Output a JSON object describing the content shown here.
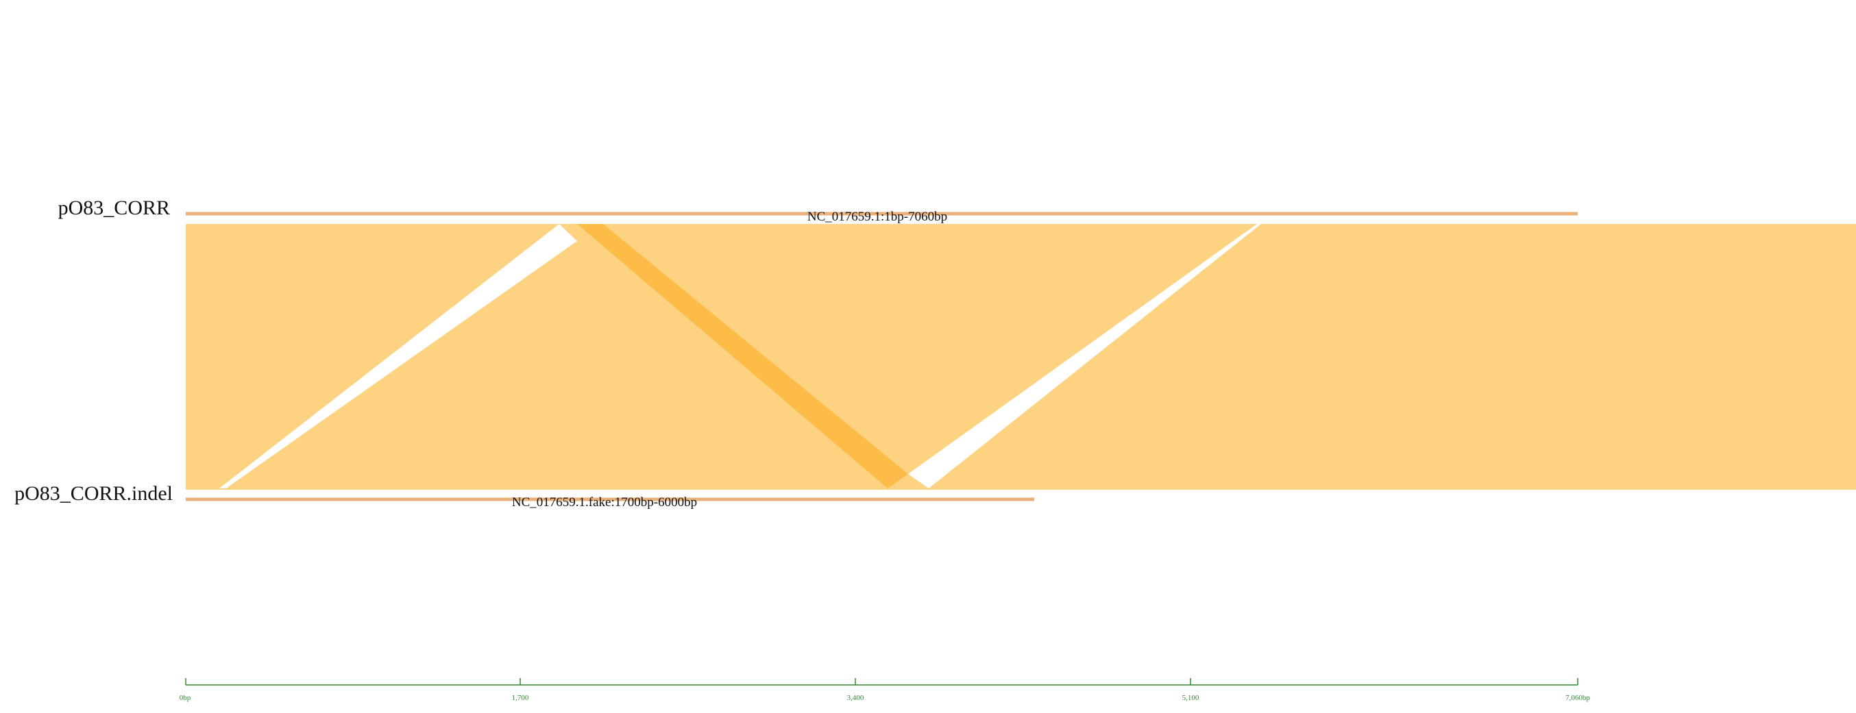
{
  "colors": {
    "block_fill": "#fdd281",
    "inversion_fill": "#fdbb47",
    "gap_fill": "#ffffff",
    "track_line": "#eab07a",
    "scale_color": "#2e8b2e"
  },
  "tracks": [
    {
      "name": "pO83_CORR"
    },
    {
      "name": "pO83_CORR.indel"
    }
  ],
  "segments": [
    {
      "label": "NC_017659.1:1bp-7060bp"
    },
    {
      "label": "NC_017659.1.fake:1700bp-6000bp"
    }
  ],
  "scale": {
    "ticks": [
      {
        "label": "0bp"
      },
      {
        "label": "1,700"
      },
      {
        "label": "3,400"
      },
      {
        "label": "5,100"
      },
      {
        "label": "7,060bp"
      }
    ]
  }
}
